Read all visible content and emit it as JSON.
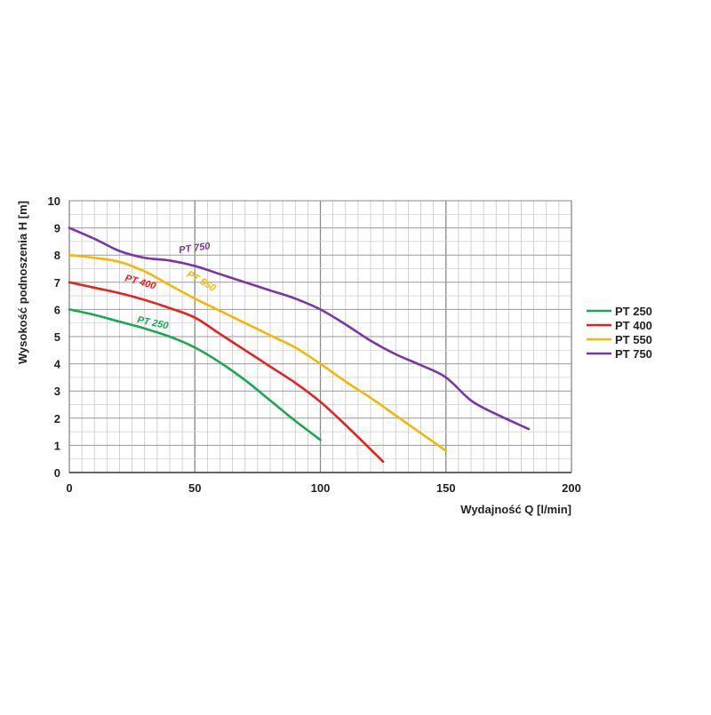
{
  "chart_data": {
    "type": "line",
    "title": "",
    "xlabel": "Wydajność Q [l/min]",
    "ylabel": "Wysokość podnoszenia H [m]",
    "xlim": [
      0,
      200
    ],
    "ylim": [
      0,
      10
    ],
    "x_ticks": [
      0,
      50,
      100,
      150,
      200
    ],
    "y_ticks": [
      0,
      1,
      2,
      3,
      4,
      5,
      6,
      7,
      8,
      9,
      10
    ],
    "grid": true,
    "legend_position": "right",
    "series": [
      {
        "name": "PT 250",
        "color": "#1aa850",
        "x": [
          0,
          10,
          20,
          30,
          40,
          50,
          60,
          70,
          80,
          90,
          100
        ],
        "y": [
          6.0,
          5.8,
          5.55,
          5.3,
          5.0,
          4.6,
          4.05,
          3.4,
          2.65,
          1.9,
          1.2
        ]
      },
      {
        "name": "PT 400",
        "color": "#e82020",
        "x": [
          0,
          10,
          20,
          30,
          40,
          50,
          60,
          70,
          80,
          90,
          100,
          110,
          125
        ],
        "y": [
          7.0,
          6.8,
          6.6,
          6.35,
          6.05,
          5.7,
          5.1,
          4.5,
          3.9,
          3.3,
          2.6,
          1.75,
          0.4
        ]
      },
      {
        "name": "PT 550",
        "color": "#f5b800",
        "x": [
          0,
          10,
          20,
          30,
          40,
          50,
          60,
          70,
          80,
          90,
          100,
          110,
          120,
          130,
          140,
          150
        ],
        "y": [
          8.0,
          7.9,
          7.75,
          7.4,
          6.9,
          6.4,
          5.95,
          5.5,
          5.05,
          4.6,
          4.0,
          3.35,
          2.75,
          2.1,
          1.45,
          0.8
        ]
      },
      {
        "name": "PT 750",
        "color": "#7a35a8",
        "x": [
          0,
          10,
          20,
          30,
          40,
          50,
          60,
          70,
          80,
          90,
          100,
          110,
          120,
          130,
          140,
          150,
          160,
          170,
          183
        ],
        "y": [
          9.0,
          8.6,
          8.15,
          7.9,
          7.8,
          7.6,
          7.3,
          7.0,
          6.7,
          6.4,
          6.0,
          5.45,
          4.85,
          4.35,
          3.95,
          3.5,
          2.65,
          2.15,
          1.6
        ]
      }
    ],
    "curve_annotations": [
      {
        "text": "PT 750",
        "series": 3,
        "x": 50,
        "y": 8.15,
        "angle": -8
      },
      {
        "text": "PT 550",
        "series": 2,
        "x": 52,
        "y": 6.95,
        "angle": 30
      },
      {
        "text": "PT 400",
        "series": 1,
        "x": 28,
        "y": 6.9,
        "angle": 16
      },
      {
        "text": "PT 250",
        "series": 0,
        "x": 33,
        "y": 5.4,
        "angle": 12
      }
    ]
  }
}
